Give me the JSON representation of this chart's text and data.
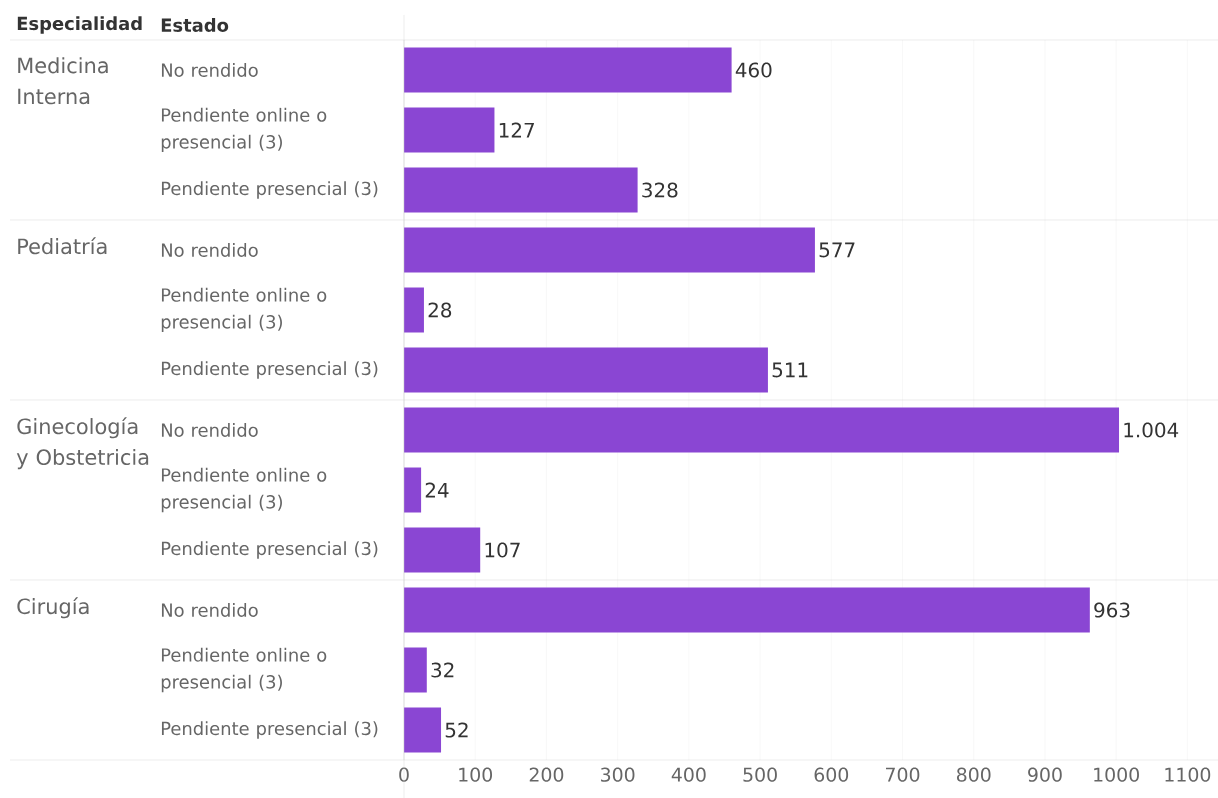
{
  "chart_data": {
    "type": "bar",
    "orientation": "horizontal",
    "ylabel": "Estado",
    "categories": [
      "No rendido",
      "Pendiente online o presencial (3)",
      "Pendiente presencial (3)",
      "No rendido",
      "Pendiente online o presencial (3)",
      "Pendiente presencial (3)",
      "No rendido",
      "Pendiente online o presencial (3)",
      "Pendiente presencial (3)",
      "No rendido",
      "Pendiente online o presencial (3)",
      "Pendiente presencial (3)"
    ],
    "values": [
      460,
      127,
      328,
      577,
      28,
      511,
      1004,
      24,
      107,
      963,
      32,
      52
    ],
    "value_labels": [
      "460",
      "127",
      "328",
      "577",
      "28",
      "511",
      "1.004",
      "24",
      "107",
      "963",
      "32",
      "52"
    ],
    "color": "#8a46d3",
    "annotations": [
      "Especialidad",
      "Medicina Interna",
      "Pediatría",
      "Ginecología y Obstetricia",
      "Cirugía"
    ],
    "xlim": [
      0,
      1143
    ],
    "xticks": [
      0,
      100,
      200,
      300,
      400,
      500,
      600,
      700,
      800,
      900,
      1000,
      1100
    ],
    "grid": "x"
  }
}
